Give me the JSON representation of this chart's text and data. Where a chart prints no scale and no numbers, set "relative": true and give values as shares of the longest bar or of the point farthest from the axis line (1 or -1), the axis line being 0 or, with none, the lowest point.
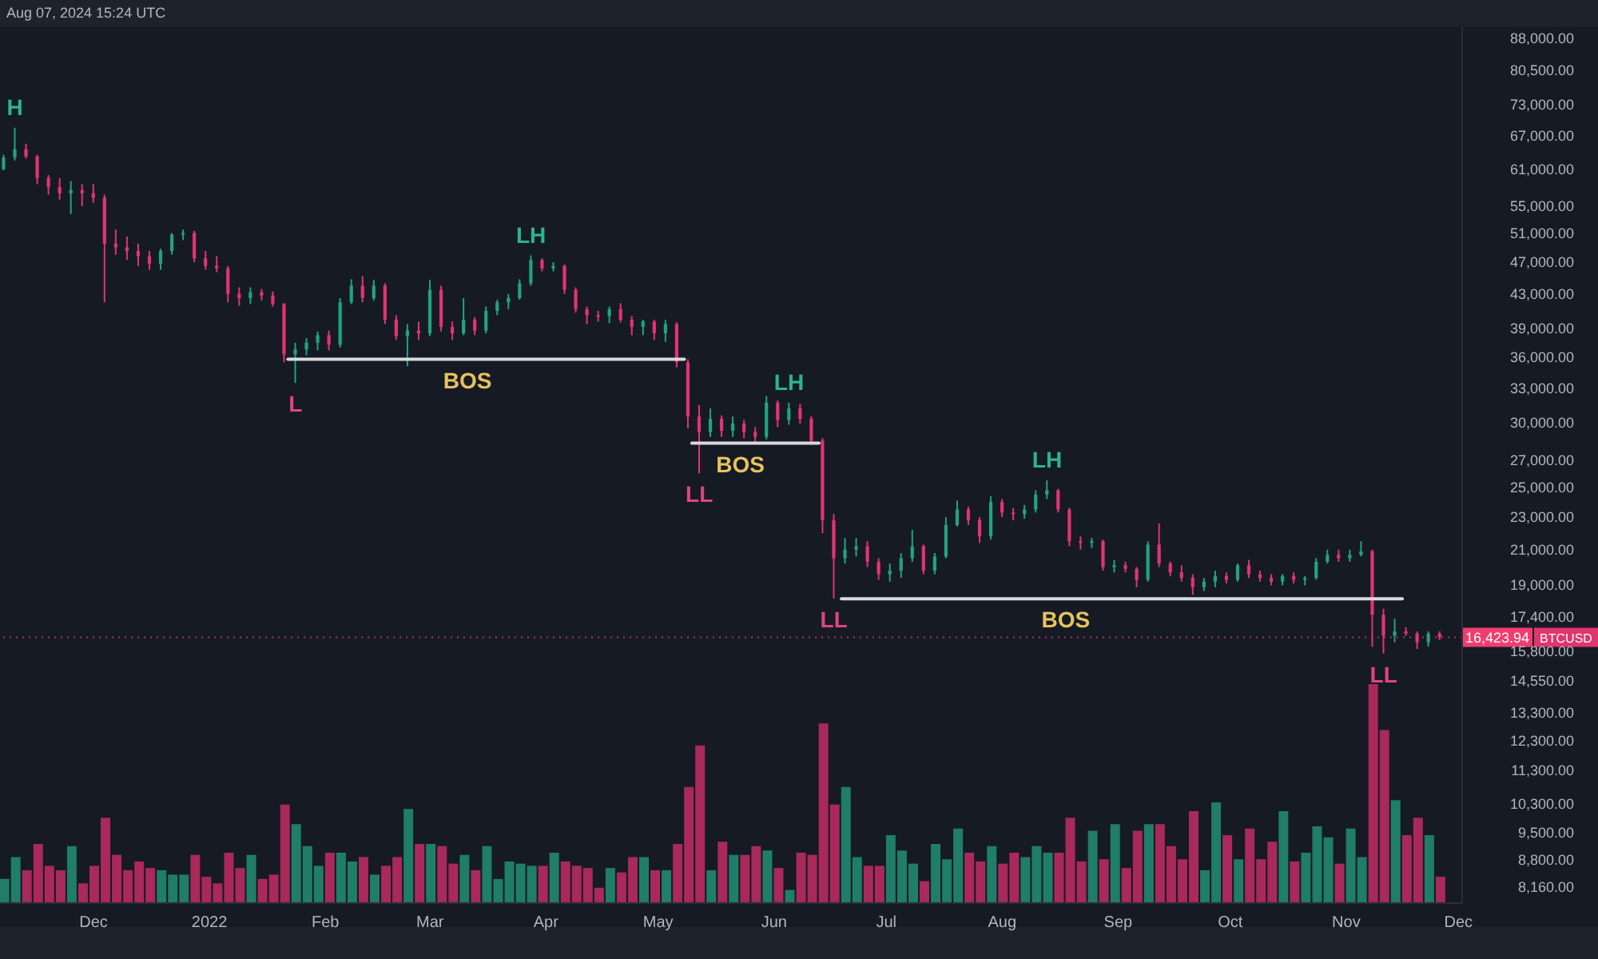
{
  "chart_data": [
    {
      "type": "candlestick",
      "log": true,
      "ylim": [
        7800,
        90800
      ],
      "yticks": [
        {
          "value": 88000,
          "label": "88,000.00"
        },
        {
          "value": 80500,
          "label": "80,500.00"
        },
        {
          "value": 73000,
          "label": "73,000.00"
        },
        {
          "value": 67000,
          "label": "67,000.00"
        },
        {
          "value": 61000,
          "label": "61,000.00"
        },
        {
          "value": 55000,
          "label": "55,000.00"
        },
        {
          "value": 51000,
          "label": "51,000.00"
        },
        {
          "value": 47000,
          "label": "47,000.00"
        },
        {
          "value": 43000,
          "label": "43,000.00"
        },
        {
          "value": 39000,
          "label": "39,000.00"
        },
        {
          "value": 36000,
          "label": "36,000.00"
        },
        {
          "value": 33000,
          "label": "33,000.00"
        },
        {
          "value": 30000,
          "label": "30,000.00"
        },
        {
          "value": 27000,
          "label": "27,000.00"
        },
        {
          "value": 25000,
          "label": "25,000.00"
        },
        {
          "value": 23000,
          "label": "23,000.00"
        },
        {
          "value": 21000,
          "label": "21,000.00"
        },
        {
          "value": 19000,
          "label": "19,000.00"
        },
        {
          "value": 17400,
          "label": "17,400.00"
        },
        {
          "value": 15800,
          "label": "15,800.00"
        },
        {
          "value": 14550,
          "label": "14,550.00"
        },
        {
          "value": 13300,
          "label": "13,300.00"
        },
        {
          "value": 12300,
          "label": "12,300.00"
        },
        {
          "value": 11300,
          "label": "11,300.00"
        },
        {
          "value": 10300,
          "label": "10,300.00"
        },
        {
          "value": 9500,
          "label": "9,500.00"
        },
        {
          "value": 8800,
          "label": "8,800.00"
        },
        {
          "value": 8160,
          "label": "8,160.00"
        }
      ],
      "xlim": [
        "2021-11-06",
        "2022-12-02"
      ],
      "tick_labels": "y",
      "series": [
        {
          "type": "line",
          "x": [
            "2022-01-22",
            "2022-05-08"
          ],
          "values": [
            35800,
            35800
          ],
          "color": "#d9d9d9"
        },
        {
          "type": "line",
          "x": [
            "2022-05-10",
            "2022-06-13"
          ],
          "values": [
            28300,
            28300
          ],
          "color": "#d9d9d9"
        },
        {
          "type": "line",
          "x": [
            "2022-06-19",
            "2022-11-16"
          ],
          "values": [
            18300,
            18300
          ],
          "color": "#d9d9d9"
        },
        {
          "name": "BTCUSD",
          "x": [
            "2021-11-07",
            "2021-11-10",
            "2021-11-13",
            "2021-11-16",
            "2021-11-19",
            "2021-11-22",
            "2021-11-25",
            "2021-11-28",
            "2021-12-01",
            "2021-12-04",
            "2021-12-07",
            "2021-12-10",
            "2021-12-13",
            "2021-12-16",
            "2021-12-19",
            "2021-12-22",
            "2021-12-25",
            "2021-12-28",
            "2021-12-31",
            "2022-01-03",
            "2022-01-06",
            "2022-01-09",
            "2022-01-12",
            "2022-01-15",
            "2022-01-18",
            "2022-01-21",
            "2022-01-24",
            "2022-01-27",
            "2022-01-30",
            "2022-02-02",
            "2022-02-05",
            "2022-02-08",
            "2022-02-11",
            "2022-02-14",
            "2022-02-17",
            "2022-02-20",
            "2022-02-23",
            "2022-02-26",
            "2022-03-01",
            "2022-03-04",
            "2022-03-07",
            "2022-03-10",
            "2022-03-13",
            "2022-03-16",
            "2022-03-19",
            "2022-03-22",
            "2022-03-25",
            "2022-03-28",
            "2022-03-31",
            "2022-04-03",
            "2022-04-06",
            "2022-04-09",
            "2022-04-12",
            "2022-04-15",
            "2022-04-18",
            "2022-04-21",
            "2022-04-24",
            "2022-04-27",
            "2022-04-30",
            "2022-05-03",
            "2022-05-06",
            "2022-05-09",
            "2022-05-12",
            "2022-05-15",
            "2022-05-18",
            "2022-05-21",
            "2022-05-24",
            "2022-05-27",
            "2022-05-30",
            "2022-06-02",
            "2022-06-05",
            "2022-06-08",
            "2022-06-11",
            "2022-06-14",
            "2022-06-17",
            "2022-06-20",
            "2022-06-23",
            "2022-06-26",
            "2022-06-29",
            "2022-07-02",
            "2022-07-05",
            "2022-07-08",
            "2022-07-11",
            "2022-07-14",
            "2022-07-17",
            "2022-07-20",
            "2022-07-23",
            "2022-07-26",
            "2022-07-29",
            "2022-08-01",
            "2022-08-04",
            "2022-08-07",
            "2022-08-10",
            "2022-08-13",
            "2022-08-16",
            "2022-08-19",
            "2022-08-22",
            "2022-08-25",
            "2022-08-28",
            "2022-08-31",
            "2022-09-03",
            "2022-09-06",
            "2022-09-09",
            "2022-09-12",
            "2022-09-15",
            "2022-09-18",
            "2022-09-21",
            "2022-09-24",
            "2022-09-27",
            "2022-09-30",
            "2022-10-03",
            "2022-10-06",
            "2022-10-09",
            "2022-10-12",
            "2022-10-15",
            "2022-10-18",
            "2022-10-21",
            "2022-10-24",
            "2022-10-27",
            "2022-10-30",
            "2022-11-02",
            "2022-11-05",
            "2022-11-08",
            "2022-11-11",
            "2022-11-14",
            "2022-11-17",
            "2022-11-20",
            "2022-11-23",
            "2022-11-26"
          ],
          "ohlc": [
            [
              61000,
              63500,
              60800,
              63000
            ],
            [
              63000,
              68500,
              62500,
              64500
            ],
            [
              64500,
              65500,
              62800,
              63200
            ],
            [
              63200,
              63500,
              58500,
              59500
            ],
            [
              59500,
              60000,
              56800,
              58000
            ],
            [
              58000,
              59500,
              56000,
              57000
            ],
            [
              57000,
              59000,
              53800,
              57500
            ],
            [
              57500,
              58500,
              55000,
              57000
            ],
            [
              57000,
              58500,
              55500,
              56300
            ],
            [
              56300,
              56800,
              42000,
              49500
            ],
            [
              49500,
              51500,
              48000,
              49000
            ],
            [
              49000,
              50500,
              47300,
              48500
            ],
            [
              48500,
              49500,
              46500,
              47800
            ],
            [
              47800,
              48500,
              46000,
              46800
            ],
            [
              46800,
              48800,
              46000,
              48500
            ],
            [
              48500,
              51000,
              48000,
              50800
            ],
            [
              50800,
              51500,
              50000,
              51000
            ],
            [
              51000,
              51300,
              47000,
              47500
            ],
            [
              47500,
              48500,
              46000,
              46500
            ],
            [
              46500,
              47800,
              45700,
              46200
            ],
            [
              46200,
              46500,
              42000,
              43000
            ],
            [
              43000,
              43800,
              41600,
              42500
            ],
            [
              42500,
              43800,
              41800,
              43200
            ],
            [
              43200,
              43600,
              42200,
              42800
            ],
            [
              42800,
              43300,
              41500,
              41800
            ],
            [
              41800,
              41900,
              35500,
              36300
            ],
            [
              36300,
              37500,
              33500,
              36800
            ],
            [
              36800,
              38000,
              36200,
              37500
            ],
            [
              37500,
              38700,
              36700,
              38300
            ],
            [
              38300,
              38800,
              36700,
              37300
            ],
            [
              37300,
              42500,
              37000,
              42000
            ],
            [
              42000,
              44800,
              41800,
              44000
            ],
            [
              44000,
              45200,
              42000,
              42500
            ],
            [
              42500,
              44700,
              42200,
              44000
            ],
            [
              44000,
              44300,
              39500,
              40000
            ],
            [
              40000,
              40500,
              37800,
              38200
            ],
            [
              38200,
              39500,
              35100,
              38800
            ],
            [
              38800,
              39800,
              37800,
              38500
            ],
            [
              38500,
              44700,
              38200,
              43500
            ],
            [
              43500,
              44000,
              38700,
              39200
            ],
            [
              39200,
              39800,
              37800,
              38500
            ],
            [
              38500,
              42500,
              38300,
              40000
            ],
            [
              40000,
              40300,
              38300,
              38800
            ],
            [
              38800,
              41500,
              38500,
              41000
            ],
            [
              41000,
              42300,
              40500,
              42000
            ],
            [
              42000,
              43000,
              41200,
              42500
            ],
            [
              42500,
              44800,
              42300,
              44300
            ],
            [
              44300,
              47900,
              44000,
              47300
            ],
            [
              47300,
              47500,
              45800,
              46200
            ],
            [
              46200,
              47000,
              45800,
              46500
            ],
            [
              46500,
              46700,
              43000,
              43500
            ],
            [
              43500,
              43800,
              40800,
              41200
            ],
            [
              41200,
              41500,
              39500,
              40500
            ],
            [
              40500,
              41000,
              39800,
              40400
            ],
            [
              40400,
              41500,
              39600,
              41200
            ],
            [
              41200,
              41900,
              39700,
              40000
            ],
            [
              40000,
              40400,
              38300,
              39200
            ],
            [
              39200,
              40000,
              38300,
              39800
            ],
            [
              39800,
              40000,
              37800,
              38500
            ],
            [
              38500,
              40000,
              37600,
              39500
            ],
            [
              39500,
              39700,
              35000,
              35500
            ],
            [
              35500,
              35800,
              29500,
              30500
            ],
            [
              30500,
              31500,
              26000,
              29200
            ],
            [
              29200,
              31200,
              28800,
              30300
            ],
            [
              30300,
              30600,
              28800,
              29300
            ],
            [
              29300,
              30500,
              28800,
              29900
            ],
            [
              29900,
              30200,
              28700,
              29200
            ],
            [
              29200,
              29600,
              28400,
              28800
            ],
            [
              28800,
              32300,
              28600,
              31700
            ],
            [
              31700,
              31900,
              29600,
              30200
            ],
            [
              30200,
              31700,
              29800,
              31200
            ],
            [
              31200,
              31600,
              29900,
              30300
            ],
            [
              30300,
              30500,
              28200,
              28500
            ],
            [
              28500,
              28700,
              22000,
              22800
            ],
            [
              22800,
              23200,
              18300,
              20500
            ],
            [
              20500,
              21700,
              20200,
              21000
            ],
            [
              21000,
              21700,
              20600,
              21200
            ],
            [
              21200,
              21500,
              20000,
              20300
            ],
            [
              20300,
              20500,
              19300,
              19600
            ],
            [
              19600,
              20200,
              19200,
              19800
            ],
            [
              19800,
              20800,
              19400,
              20500
            ],
            [
              20500,
              22200,
              20300,
              21200
            ],
            [
              21200,
              21300,
              19600,
              19800
            ],
            [
              19800,
              20800,
              19600,
              20600
            ],
            [
              20600,
              23000,
              20500,
              22500
            ],
            [
              22500,
              24100,
              22400,
              23500
            ],
            [
              23500,
              23700,
              22500,
              22800
            ],
            [
              22800,
              23000,
              21400,
              21800
            ],
            [
              21800,
              24400,
              21600,
              24000
            ],
            [
              24000,
              24200,
              23000,
              23300
            ],
            [
              23300,
              23600,
              22800,
              23200
            ],
            [
              23200,
              23800,
              22900,
              23500
            ],
            [
              23500,
              24800,
              23300,
              24500
            ],
            [
              24500,
              25500,
              24200,
              24800
            ],
            [
              24800,
              24900,
              23300,
              23500
            ],
            [
              23500,
              23600,
              21200,
              21500
            ],
            [
              21500,
              21800,
              21000,
              21400
            ],
            [
              21400,
              21700,
              21100,
              21500
            ],
            [
              21500,
              21600,
              19800,
              20000
            ],
            [
              20000,
              20400,
              19700,
              20100
            ],
            [
              20100,
              20300,
              19700,
              19900
            ],
            [
              19900,
              20000,
              18900,
              19300
            ],
            [
              19300,
              21500,
              19200,
              21300
            ],
            [
              21300,
              22600,
              20000,
              20200
            ],
            [
              20200,
              20300,
              19500,
              19700
            ],
            [
              19700,
              20100,
              19200,
              19400
            ],
            [
              19400,
              19600,
              18500,
              18900
            ],
            [
              18900,
              19400,
              18700,
              19200
            ],
            [
              19200,
              19800,
              18900,
              19500
            ],
            [
              19500,
              19700,
              19100,
              19300
            ],
            [
              19300,
              20200,
              19200,
              20100
            ],
            [
              20100,
              20400,
              19400,
              19600
            ],
            [
              19600,
              19800,
              19200,
              19400
            ],
            [
              19400,
              19600,
              19000,
              19200
            ],
            [
              19200,
              19600,
              19000,
              19500
            ],
            [
              19500,
              19700,
              19100,
              19300
            ],
            [
              19300,
              19500,
              19000,
              19400
            ],
            [
              19400,
              20500,
              19300,
              20300
            ],
            [
              20300,
              21000,
              20200,
              20700
            ],
            [
              20700,
              21000,
              20300,
              20500
            ],
            [
              20500,
              21000,
              20300,
              20700
            ],
            [
              20700,
              21500,
              20600,
              20900
            ],
            [
              20900,
              21000,
              16000,
              17500
            ],
            [
              17500,
              17800,
              15700,
              16500
            ],
            [
              16500,
              17300,
              16200,
              16700
            ],
            [
              16700,
              16900,
              16500,
              16600
            ],
            [
              16600,
              16700,
              15900,
              16200
            ],
            [
              16200,
              16700,
              16000,
              16600
            ],
            [
              16600,
              16700,
              16300,
              16423.94
            ]
          ],
          "colors": [
            "#22a37e",
            "#22a37e",
            "#e0356e",
            "#e0356e",
            "#e0356e",
            "#e0356e",
            "#22a37e",
            "#e0356e",
            "#e0356e",
            "#e0356e",
            "#e0356e",
            "#e0356e",
            "#e0356e",
            "#e0356e",
            "#22a37e",
            "#22a37e",
            "#22a37e",
            "#e0356e",
            "#e0356e",
            "#e0356e",
            "#e0356e",
            "#e0356e",
            "#22a37e",
            "#e0356e",
            "#e0356e",
            "#e0356e",
            "#22a37e",
            "#22a37e",
            "#22a37e",
            "#e0356e",
            "#22a37e",
            "#22a37e",
            "#e0356e",
            "#22a37e",
            "#e0356e",
            "#e0356e",
            "#22a37e",
            "#e0356e",
            "#22a37e",
            "#e0356e",
            "#e0356e",
            "#22a37e",
            "#e0356e",
            "#22a37e",
            "#22a37e",
            "#22a37e",
            "#22a37e",
            "#22a37e",
            "#e0356e",
            "#22a37e",
            "#e0356e",
            "#e0356e",
            "#e0356e",
            "#e0356e",
            "#22a37e",
            "#e0356e",
            "#e0356e",
            "#22a37e",
            "#e0356e",
            "#22a37e",
            "#e0356e",
            "#e0356e",
            "#e0356e",
            "#22a37e",
            "#e0356e",
            "#22a37e",
            "#e0356e",
            "#e0356e",
            "#22a37e",
            "#e0356e",
            "#22a37e",
            "#e0356e",
            "#e0356e",
            "#e0356e",
            "#e0356e",
            "#22a37e",
            "#22a37e",
            "#e0356e",
            "#e0356e",
            "#22a37e",
            "#22a37e",
            "#22a37e",
            "#e0356e",
            "#22a37e",
            "#22a37e",
            "#22a37e",
            "#e0356e",
            "#e0356e",
            "#22a37e",
            "#e0356e",
            "#e0356e",
            "#22a37e",
            "#22a37e",
            "#22a37e",
            "#e0356e",
            "#e0356e",
            "#e0356e",
            "#22a37e",
            "#e0356e",
            "#22a37e",
            "#e0356e",
            "#e0356e",
            "#22a37e",
            "#e0356e",
            "#e0356e",
            "#e0356e",
            "#e0356e",
            "#22a37e",
            "#22a37e",
            "#e0356e",
            "#22a37e",
            "#e0356e",
            "#e0356e",
            "#e0356e",
            "#22a37e",
            "#e0356e",
            "#22a37e",
            "#22a37e",
            "#22a37e",
            "#e0356e",
            "#22a37e",
            "#22a37e",
            "#e0356e",
            "#e0356e",
            "#22a37e",
            "#e0356e",
            "#e0356e",
            "#22a37e",
            "#e0356e"
          ]
        }
      ],
      "ref_lines": [
        {
          "axis": "y",
          "value": 16423.94,
          "label": "16,423.94",
          "color": "#f23c6e",
          "line_style": "dotted"
        }
      ],
      "annotations": [
        "Aug 07, 2024 15:24 UTC",
        {
          "text": "H",
          "x": "2021-11-10",
          "y": 68500
        },
        {
          "text": "LH",
          "x": "2022-03-28",
          "y": 47900
        },
        {
          "text": "L",
          "x": "2022-01-24",
          "y": 33500
        },
        {
          "text": "BOS",
          "x": "2022-03-11",
          "y": 35800
        },
        {
          "text": "LH",
          "x": "2022-06-05",
          "y": 31700
        },
        {
          "text": "LL",
          "x": "2022-05-12",
          "y": 26000
        },
        {
          "text": "BOS",
          "x": "2022-05-23",
          "y": 28300
        },
        {
          "text": "LH",
          "x": "2022-08-13",
          "y": 25500
        },
        {
          "text": "LL",
          "x": "2022-06-17",
          "y": 18300
        },
        {
          "text": "BOS",
          "x": "2022-08-18",
          "y": 18300
        },
        {
          "text": "LL",
          "x": "2022-11-11",
          "y": 15700
        }
      ]
    },
    {
      "type": "bar",
      "relative": true,
      "xlim": [
        "2021-11-06",
        "2022-12-02"
      ],
      "tick_labels": "x",
      "xticks": [
        {
          "value": "2021-12-01",
          "label": "Dec"
        },
        {
          "value": "2022-01-01",
          "label": "2022"
        },
        {
          "value": "2022-02-01",
          "label": "Feb"
        },
        {
          "value": "2022-03-01",
          "label": "Mar"
        },
        {
          "value": "2022-04-01",
          "label": "Apr"
        },
        {
          "value": "2022-05-01",
          "label": "May"
        },
        {
          "value": "2022-06-01",
          "label": "Jun"
        },
        {
          "value": "2022-07-01",
          "label": "Jul"
        },
        {
          "value": "2022-08-01",
          "label": "Aug"
        },
        {
          "value": "2022-09-01",
          "label": "Sep"
        },
        {
          "value": "2022-10-01",
          "label": "Oct"
        },
        {
          "value": "2022-11-01",
          "label": "Nov"
        },
        {
          "value": "2022-12-01",
          "label": "Dec"
        }
      ],
      "x": [
        "2021-11-07",
        "2021-11-10",
        "2021-11-13",
        "2021-11-16",
        "2021-11-19",
        "2021-11-22",
        "2021-11-25",
        "2021-11-28",
        "2021-12-01",
        "2021-12-04",
        "2021-12-07",
        "2021-12-10",
        "2021-12-13",
        "2021-12-16",
        "2021-12-19",
        "2021-12-22",
        "2021-12-25",
        "2021-12-28",
        "2021-12-31",
        "2022-01-03",
        "2022-01-06",
        "2022-01-09",
        "2022-01-12",
        "2022-01-15",
        "2022-01-18",
        "2022-01-21",
        "2022-01-24",
        "2022-01-27",
        "2022-01-30",
        "2022-02-02",
        "2022-02-05",
        "2022-02-08",
        "2022-02-11",
        "2022-02-14",
        "2022-02-17",
        "2022-02-20",
        "2022-02-23",
        "2022-02-26",
        "2022-03-01",
        "2022-03-04",
        "2022-03-07",
        "2022-03-10",
        "2022-03-13",
        "2022-03-16",
        "2022-03-19",
        "2022-03-22",
        "2022-03-25",
        "2022-03-28",
        "2022-03-31",
        "2022-04-03",
        "2022-04-06",
        "2022-04-09",
        "2022-04-12",
        "2022-04-15",
        "2022-04-18",
        "2022-04-21",
        "2022-04-24",
        "2022-04-27",
        "2022-04-30",
        "2022-05-03",
        "2022-05-06",
        "2022-05-09",
        "2022-05-12",
        "2022-05-15",
        "2022-05-18",
        "2022-05-21",
        "2022-05-24",
        "2022-05-27",
        "2022-05-30",
        "2022-06-02",
        "2022-06-05",
        "2022-06-08",
        "2022-06-11",
        "2022-06-14",
        "2022-06-17",
        "2022-06-20",
        "2022-06-23",
        "2022-06-26",
        "2022-06-29",
        "2022-07-02",
        "2022-07-05",
        "2022-07-08",
        "2022-07-11",
        "2022-07-14",
        "2022-07-17",
        "2022-07-20",
        "2022-07-23",
        "2022-07-26",
        "2022-07-29",
        "2022-08-01",
        "2022-08-04",
        "2022-08-07",
        "2022-08-10",
        "2022-08-13",
        "2022-08-16",
        "2022-08-19",
        "2022-08-22",
        "2022-08-25",
        "2022-08-28",
        "2022-08-31",
        "2022-09-03",
        "2022-09-06",
        "2022-09-09",
        "2022-09-12",
        "2022-09-15",
        "2022-09-18",
        "2022-09-21",
        "2022-09-24",
        "2022-09-27",
        "2022-09-30",
        "2022-10-03",
        "2022-10-06",
        "2022-10-09",
        "2022-10-12",
        "2022-10-15",
        "2022-10-18",
        "2022-10-21",
        "2022-10-24",
        "2022-10-27",
        "2022-10-30",
        "2022-11-02",
        "2022-11-05",
        "2022-11-08",
        "2022-11-11",
        "2022-11-14",
        "2022-11-17",
        "2022-11-20",
        "2022-11-23",
        "2022-11-26"
      ],
      "values": [
        0.11,
        0.21,
        0.15,
        0.27,
        0.17,
        0.15,
        0.26,
        0.09,
        0.17,
        0.39,
        0.22,
        0.15,
        0.19,
        0.16,
        0.15,
        0.13,
        0.13,
        0.22,
        0.12,
        0.09,
        0.23,
        0.16,
        0.22,
        0.11,
        0.13,
        0.45,
        0.36,
        0.26,
        0.17,
        0.23,
        0.23,
        0.19,
        0.21,
        0.13,
        0.17,
        0.21,
        0.43,
        0.27,
        0.27,
        0.26,
        0.18,
        0.22,
        0.15,
        0.26,
        0.11,
        0.19,
        0.18,
        0.17,
        0.17,
        0.23,
        0.19,
        0.17,
        0.16,
        0.07,
        0.16,
        0.14,
        0.21,
        0.21,
        0.15,
        0.15,
        0.27,
        0.53,
        0.72,
        0.15,
        0.28,
        0.22,
        0.22,
        0.26,
        0.24,
        0.16,
        0.06,
        0.23,
        0.22,
        0.82,
        0.45,
        0.53,
        0.21,
        0.17,
        0.17,
        0.31,
        0.24,
        0.18,
        0.1,
        0.27,
        0.2,
        0.34,
        0.23,
        0.19,
        0.26,
        0.18,
        0.23,
        0.21,
        0.26,
        0.23,
        0.23,
        0.39,
        0.19,
        0.33,
        0.2,
        0.36,
        0.16,
        0.33,
        0.36,
        0.36,
        0.26,
        0.2,
        0.42,
        0.15,
        0.46,
        0.31,
        0.2,
        0.34,
        0.2,
        0.28,
        0.42,
        0.19,
        0.23,
        0.35,
        0.3,
        0.18,
        0.34,
        0.21,
        1,
        0.79,
        0.47,
        0.31,
        0.39,
        0.31,
        0.12
      ],
      "colors": [
        "#1f7d68",
        "#1f7d68",
        "#a8295a",
        "#a8295a",
        "#a8295a",
        "#a8295a",
        "#1f7d68",
        "#a8295a",
        "#a8295a",
        "#a8295a",
        "#a8295a",
        "#a8295a",
        "#a8295a",
        "#a8295a",
        "#1f7d68",
        "#1f7d68",
        "#1f7d68",
        "#a8295a",
        "#a8295a",
        "#a8295a",
        "#a8295a",
        "#a8295a",
        "#1f7d68",
        "#a8295a",
        "#a8295a",
        "#a8295a",
        "#1f7d68",
        "#1f7d68",
        "#1f7d68",
        "#a8295a",
        "#1f7d68",
        "#1f7d68",
        "#a8295a",
        "#1f7d68",
        "#a8295a",
        "#a8295a",
        "#1f7d68",
        "#a8295a",
        "#1f7d68",
        "#a8295a",
        "#a8295a",
        "#1f7d68",
        "#a8295a",
        "#1f7d68",
        "#1f7d68",
        "#1f7d68",
        "#1f7d68",
        "#1f7d68",
        "#a8295a",
        "#1f7d68",
        "#a8295a",
        "#a8295a",
        "#a8295a",
        "#a8295a",
        "#1f7d68",
        "#a8295a",
        "#a8295a",
        "#1f7d68",
        "#a8295a",
        "#1f7d68",
        "#a8295a",
        "#a8295a",
        "#a8295a",
        "#1f7d68",
        "#a8295a",
        "#1f7d68",
        "#a8295a",
        "#a8295a",
        "#1f7d68",
        "#a8295a",
        "#1f7d68",
        "#a8295a",
        "#a8295a",
        "#a8295a",
        "#a8295a",
        "#1f7d68",
        "#1f7d68",
        "#a8295a",
        "#a8295a",
        "#1f7d68",
        "#1f7d68",
        "#1f7d68",
        "#a8295a",
        "#1f7d68",
        "#1f7d68",
        "#1f7d68",
        "#a8295a",
        "#a8295a",
        "#1f7d68",
        "#a8295a",
        "#a8295a",
        "#1f7d68",
        "#1f7d68",
        "#1f7d68",
        "#a8295a",
        "#a8295a",
        "#a8295a",
        "#1f7d68",
        "#a8295a",
        "#1f7d68",
        "#a8295a",
        "#a8295a",
        "#1f7d68",
        "#a8295a",
        "#a8295a",
        "#a8295a",
        "#a8295a",
        "#1f7d68",
        "#1f7d68",
        "#a8295a",
        "#1f7d68",
        "#a8295a",
        "#a8295a",
        "#a8295a",
        "#1f7d68",
        "#a8295a",
        "#1f7d68",
        "#1f7d68",
        "#1f7d68",
        "#a8295a",
        "#1f7d68",
        "#1f7d68",
        "#a8295a",
        "#a8295a",
        "#1f7d68",
        "#a8295a",
        "#a8295a",
        "#1f7d68",
        "#a8295a"
      ]
    }
  ]
}
